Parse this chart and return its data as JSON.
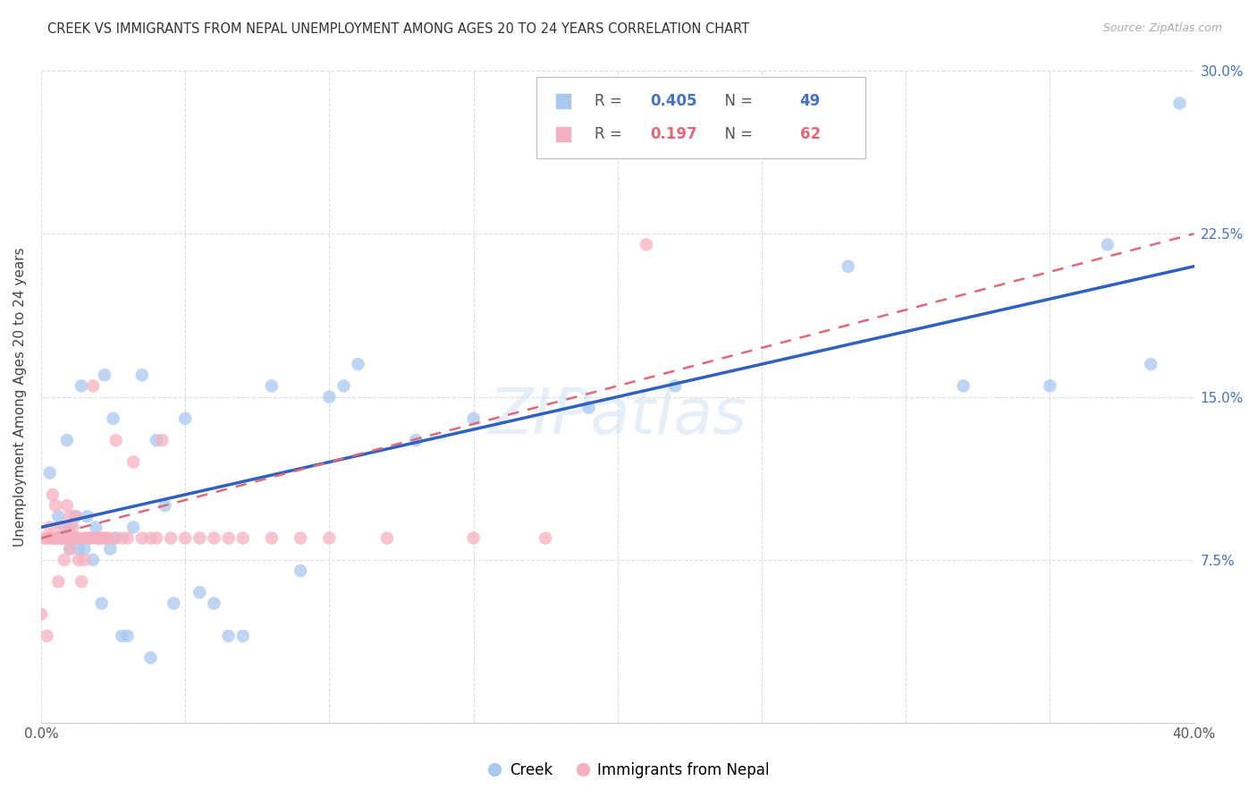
{
  "title": "CREEK VS IMMIGRANTS FROM NEPAL UNEMPLOYMENT AMONG AGES 20 TO 24 YEARS CORRELATION CHART",
  "source": "Source: ZipAtlas.com",
  "ylabel": "Unemployment Among Ages 20 to 24 years",
  "xlim": [
    0.0,
    0.4
  ],
  "ylim": [
    0.0,
    0.3
  ],
  "watermark": "ZIPatlas",
  "creek_label": "Creek",
  "nepal_label": "Immigrants from Nepal",
  "blue_scatter_color": "#A8C8F0",
  "pink_scatter_color": "#F5B0C0",
  "blue_line_color": "#3060C0",
  "pink_line_color": "#E06878",
  "creek_R": "0.405",
  "creek_N": "49",
  "nepal_R": "0.197",
  "nepal_N": "62",
  "creek_x": [
    0.003,
    0.006,
    0.007,
    0.008,
    0.009,
    0.01,
    0.01,
    0.012,
    0.013,
    0.014,
    0.015,
    0.016,
    0.017,
    0.018,
    0.019,
    0.02,
    0.021,
    0.022,
    0.024,
    0.025,
    0.026,
    0.028,
    0.03,
    0.032,
    0.035,
    0.038,
    0.04,
    0.043,
    0.046,
    0.05,
    0.055,
    0.06,
    0.065,
    0.07,
    0.08,
    0.09,
    0.1,
    0.105,
    0.11,
    0.13,
    0.15,
    0.19,
    0.22,
    0.28,
    0.32,
    0.35,
    0.37,
    0.385,
    0.395
  ],
  "creek_y": [
    0.115,
    0.095,
    0.085,
    0.09,
    0.13,
    0.09,
    0.08,
    0.095,
    0.08,
    0.155,
    0.08,
    0.095,
    0.085,
    0.075,
    0.09,
    0.085,
    0.055,
    0.16,
    0.08,
    0.14,
    0.085,
    0.04,
    0.04,
    0.09,
    0.16,
    0.03,
    0.13,
    0.1,
    0.055,
    0.14,
    0.06,
    0.055,
    0.04,
    0.04,
    0.155,
    0.07,
    0.15,
    0.155,
    0.165,
    0.13,
    0.14,
    0.145,
    0.155,
    0.21,
    0.155,
    0.155,
    0.22,
    0.165,
    0.285
  ],
  "nepal_x": [
    0.0,
    0.001,
    0.002,
    0.002,
    0.003,
    0.003,
    0.004,
    0.004,
    0.005,
    0.005,
    0.005,
    0.006,
    0.006,
    0.007,
    0.007,
    0.007,
    0.008,
    0.008,
    0.009,
    0.009,
    0.01,
    0.01,
    0.01,
    0.011,
    0.011,
    0.012,
    0.012,
    0.013,
    0.013,
    0.014,
    0.015,
    0.015,
    0.016,
    0.017,
    0.018,
    0.019,
    0.02,
    0.021,
    0.022,
    0.023,
    0.025,
    0.026,
    0.028,
    0.03,
    0.032,
    0.035,
    0.038,
    0.04,
    0.042,
    0.045,
    0.05,
    0.055,
    0.06,
    0.065,
    0.07,
    0.08,
    0.09,
    0.1,
    0.12,
    0.15,
    0.175,
    0.21
  ],
  "nepal_y": [
    0.05,
    0.085,
    0.085,
    0.04,
    0.085,
    0.09,
    0.085,
    0.105,
    0.085,
    0.1,
    0.085,
    0.085,
    0.065,
    0.085,
    0.09,
    0.085,
    0.085,
    0.075,
    0.085,
    0.1,
    0.085,
    0.095,
    0.08,
    0.085,
    0.09,
    0.085,
    0.095,
    0.085,
    0.075,
    0.065,
    0.085,
    0.075,
    0.085,
    0.085,
    0.155,
    0.085,
    0.085,
    0.085,
    0.085,
    0.085,
    0.085,
    0.13,
    0.085,
    0.085,
    0.12,
    0.085,
    0.085,
    0.085,
    0.13,
    0.085,
    0.085,
    0.085,
    0.085,
    0.085,
    0.085,
    0.085,
    0.085,
    0.085,
    0.085,
    0.085,
    0.085,
    0.22
  ],
  "blue_line_x0": 0.0,
  "blue_line_y0": 0.09,
  "blue_line_x1": 0.4,
  "blue_line_y1": 0.21,
  "pink_line_x0": 0.0,
  "pink_line_y0": 0.085,
  "pink_line_x1": 0.4,
  "pink_line_y1": 0.225
}
